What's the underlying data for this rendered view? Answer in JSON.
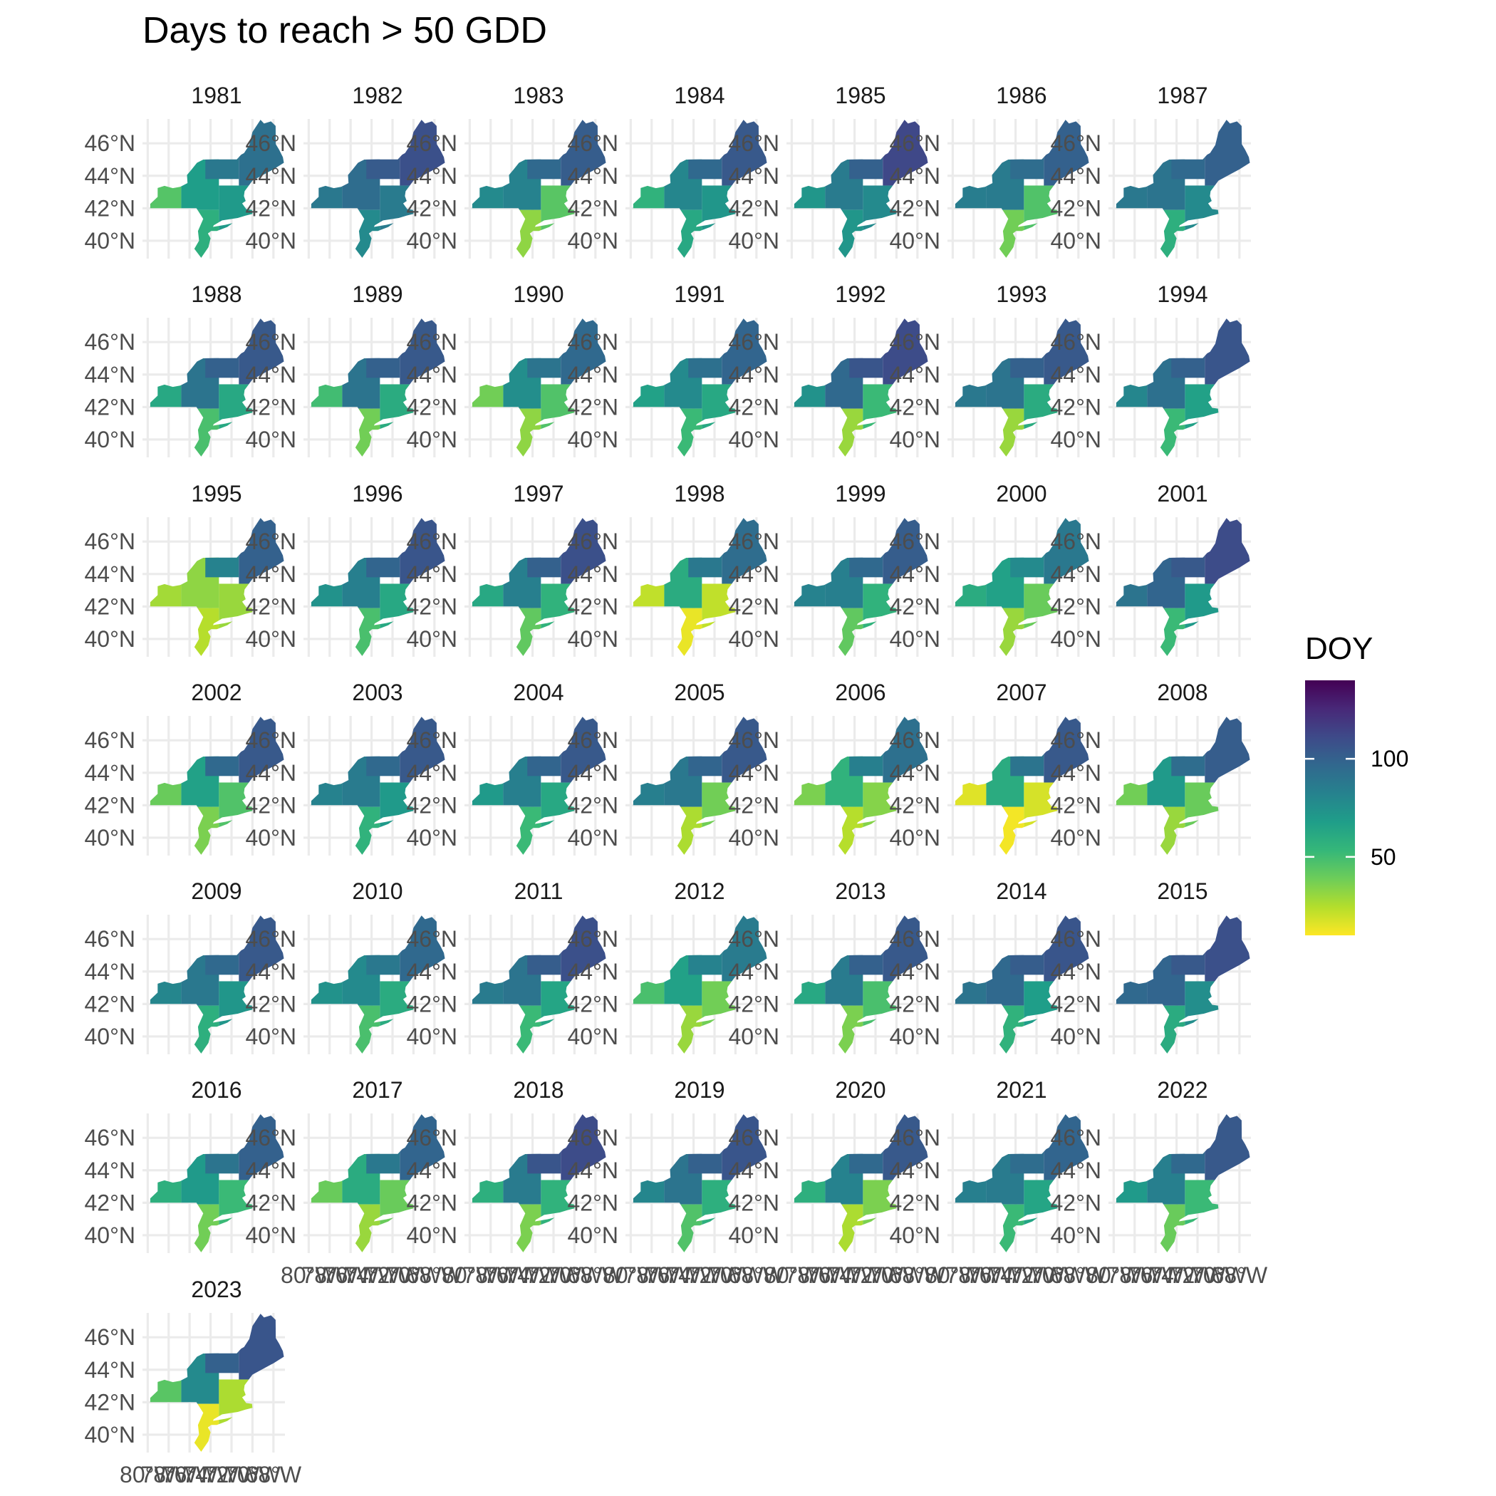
{
  "chart_data": {
    "type": "heatmap",
    "title": "Days to reach > 50 GDD",
    "panel_type": "map",
    "region": "Northeastern United States",
    "facets": [
      "1981",
      "1982",
      "1983",
      "1984",
      "1985",
      "1986",
      "1987",
      "1988",
      "1989",
      "1990",
      "1991",
      "1992",
      "1993",
      "1994",
      "1995",
      "1996",
      "1997",
      "1998",
      "1999",
      "2000",
      "2001",
      "2002",
      "2003",
      "2004",
      "2005",
      "2006",
      "2007",
      "2008",
      "2009",
      "2010",
      "2011",
      "2012",
      "2013",
      "2014",
      "2015",
      "2016",
      "2017",
      "2018",
      "2019",
      "2020",
      "2021",
      "2022",
      "2023"
    ],
    "y_ticks": [
      "46°N",
      "44°N",
      "42°N",
      "40°N"
    ],
    "y_tick_values": [
      46,
      44,
      42,
      40
    ],
    "x_ticks": [
      "80°W",
      "78°W",
      "76°W",
      "74°W",
      "72°W",
      "70°W",
      "68°W"
    ],
    "x_tick_values": [
      -80,
      -78,
      -76,
      -74,
      -72,
      -70,
      -68
    ],
    "xlim": [
      -80.5,
      -66.9
    ],
    "ylim": [
      38.9,
      47.5
    ],
    "legend": {
      "title": "DOY",
      "position": "right",
      "breaks": [
        100,
        50
      ],
      "break_labels": [
        "100",
        "50"
      ],
      "range": [
        10,
        140
      ],
      "palette": "viridis (reversed)",
      "colors": [
        "#FDE725",
        "#B4DE2C",
        "#6DCD59",
        "#35B779",
        "#1F9E89",
        "#26828E",
        "#31688E",
        "#3E4A89",
        "#482878",
        "#440154"
      ]
    },
    "grid": true,
    "yearly_doy": {
      "1981": {
        "west": 45,
        "central": 68,
        "north": 88,
        "south": 58,
        "coast": 70,
        "maine": 92
      },
      "1982": {
        "west": 88,
        "central": 94,
        "north": 103,
        "south": 78,
        "coast": 86,
        "maine": 108
      },
      "1983": {
        "west": 78,
        "central": 82,
        "north": 96,
        "south": 32,
        "coast": 44,
        "maine": 102
      },
      "1984": {
        "west": 56,
        "central": 80,
        "north": 96,
        "south": 62,
        "coast": 72,
        "maine": 104
      },
      "1985": {
        "west": 72,
        "central": 86,
        "north": 100,
        "south": 72,
        "coast": 78,
        "maine": 112
      },
      "1986": {
        "west": 85,
        "central": 86,
        "north": 94,
        "south": 38,
        "coast": 46,
        "maine": 100
      },
      "1987": {
        "west": 88,
        "central": 90,
        "north": 96,
        "south": 58,
        "coast": 78,
        "maine": 100
      },
      "1988": {
        "west": 62,
        "central": 90,
        "north": 100,
        "south": 48,
        "coast": 62,
        "maine": 104
      },
      "1989": {
        "west": 50,
        "central": 90,
        "north": 100,
        "south": 38,
        "coast": 60,
        "maine": 104
      },
      "1990": {
        "west": 38,
        "central": 76,
        "north": 90,
        "south": 32,
        "coast": 46,
        "maine": 96
      },
      "1991": {
        "west": 66,
        "central": 78,
        "north": 92,
        "south": 52,
        "coast": 62,
        "maine": 98
      },
      "1992": {
        "west": 74,
        "central": 96,
        "north": 106,
        "south": 30,
        "coast": 52,
        "maine": 110
      },
      "1993": {
        "west": 88,
        "central": 90,
        "north": 100,
        "south": 30,
        "coast": 60,
        "maine": 104
      },
      "1994": {
        "west": 80,
        "central": 92,
        "north": 100,
        "south": 52,
        "coast": 66,
        "maine": 106
      },
      "1995": {
        "west": 28,
        "central": 32,
        "north": 82,
        "south": 24,
        "coast": 30,
        "maine": 100
      },
      "1996": {
        "west": 74,
        "central": 84,
        "north": 98,
        "south": 48,
        "coast": 62,
        "maine": 106
      },
      "1997": {
        "west": 62,
        "central": 84,
        "north": 100,
        "south": 42,
        "coast": 56,
        "maine": 108
      },
      "1998": {
        "west": 22,
        "central": 60,
        "north": 88,
        "south": 14,
        "coast": 22,
        "maine": 94
      },
      "1999": {
        "west": 82,
        "central": 84,
        "north": 96,
        "south": 42,
        "coast": 56,
        "maine": 102
      },
      "2000": {
        "west": 60,
        "central": 66,
        "north": 78,
        "south": 30,
        "coast": 40,
        "maine": 88
      },
      "2001": {
        "west": 90,
        "central": 98,
        "north": 104,
        "south": 52,
        "coast": 70,
        "maine": 110
      },
      "2002": {
        "west": 40,
        "central": 66,
        "north": 96,
        "south": 36,
        "coast": 46,
        "maine": 104
      },
      "2003": {
        "west": 82,
        "central": 86,
        "north": 96,
        "south": 56,
        "coast": 70,
        "maine": 104
      },
      "2004": {
        "west": 70,
        "central": 84,
        "north": 98,
        "south": 52,
        "coast": 62,
        "maine": 104
      },
      "2005": {
        "west": 84,
        "central": 88,
        "north": 98,
        "south": 26,
        "coast": 38,
        "maine": 104
      },
      "2006": {
        "west": 36,
        "central": 56,
        "north": 84,
        "south": 24,
        "coast": 34,
        "maine": 92
      },
      "2007": {
        "west": 16,
        "central": 60,
        "north": 90,
        "south": 12,
        "coast": 18,
        "maine": 104
      },
      "2008": {
        "west": 38,
        "central": 70,
        "north": 94,
        "south": 30,
        "coast": 40,
        "maine": 102
      },
      "2009": {
        "west": 80,
        "central": 88,
        "north": 96,
        "south": 58,
        "coast": 72,
        "maine": 104
      },
      "2010": {
        "west": 74,
        "central": 78,
        "north": 88,
        "south": 48,
        "coast": 60,
        "maine": 96
      },
      "2011": {
        "west": 86,
        "central": 90,
        "north": 102,
        "south": 52,
        "coast": 64,
        "maine": 108
      },
      "2012": {
        "west": 48,
        "central": 66,
        "north": 82,
        "south": 30,
        "coast": 38,
        "maine": 86
      },
      "2013": {
        "west": 62,
        "central": 86,
        "north": 100,
        "south": 36,
        "coast": 48,
        "maine": 104
      },
      "2014": {
        "west": 90,
        "central": 96,
        "north": 102,
        "south": 56,
        "coast": 68,
        "maine": 106
      },
      "2015": {
        "west": 96,
        "central": 98,
        "north": 104,
        "south": 60,
        "coast": 76,
        "maine": 108
      },
      "2016": {
        "west": 58,
        "central": 70,
        "north": 90,
        "south": 38,
        "coast": 52,
        "maine": 100
      },
      "2017": {
        "west": 40,
        "central": 60,
        "north": 88,
        "south": 30,
        "coast": 40,
        "maine": 98
      },
      "2018": {
        "west": 58,
        "central": 86,
        "north": 106,
        "south": 36,
        "coast": 56,
        "maine": 110
      },
      "2019": {
        "west": 80,
        "central": 90,
        "north": 100,
        "south": 46,
        "coast": 58,
        "maine": 106
      },
      "2020": {
        "west": 58,
        "central": 82,
        "north": 96,
        "south": 26,
        "coast": 36,
        "maine": 104
      },
      "2021": {
        "west": 84,
        "central": 86,
        "north": 94,
        "south": 52,
        "coast": 64,
        "maine": 98
      },
      "2022": {
        "west": 70,
        "central": 84,
        "north": 96,
        "south": 40,
        "coast": 52,
        "maine": 104
      },
      "2023": {
        "west": 44,
        "central": 78,
        "north": 100,
        "south": 14,
        "coast": 26,
        "maine": 106
      }
    }
  }
}
